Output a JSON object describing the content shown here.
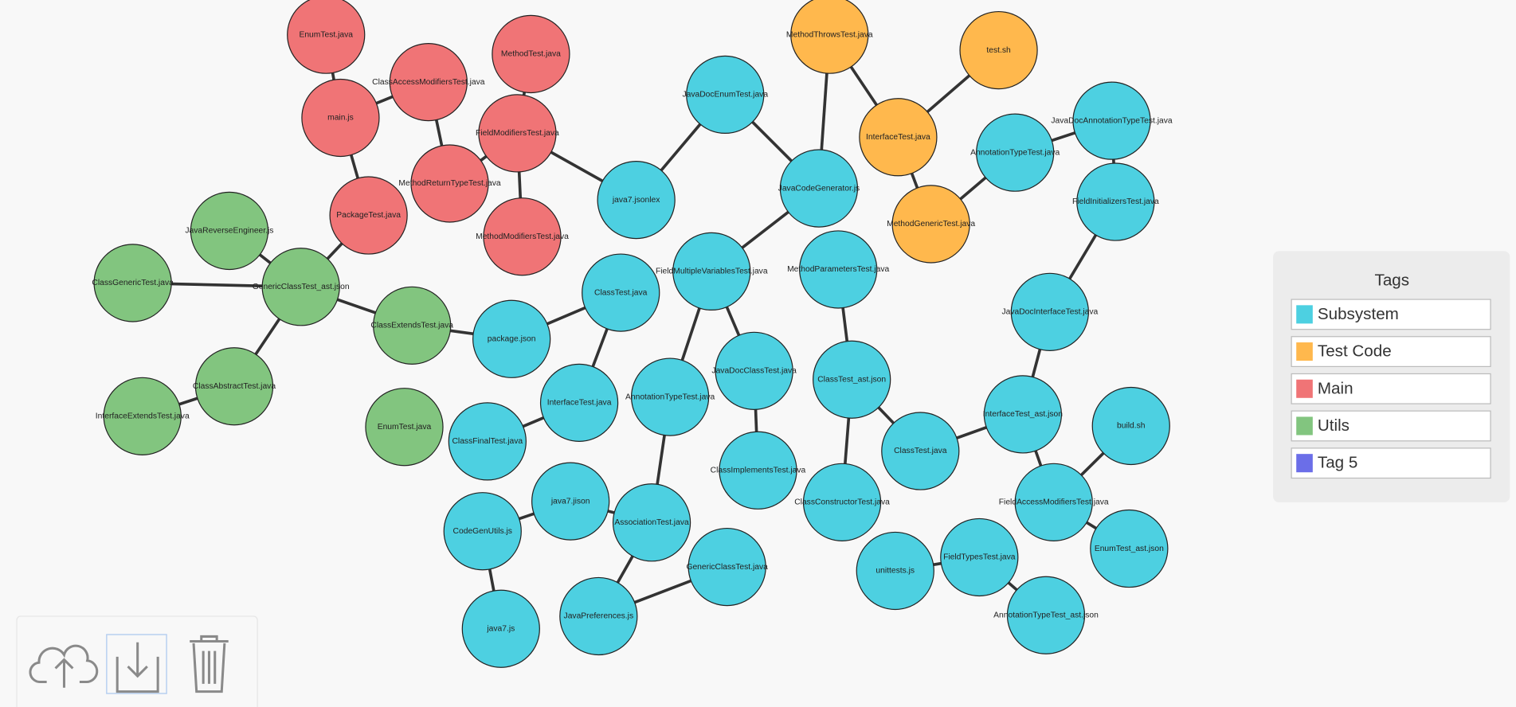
{
  "legend": {
    "title": "Tags",
    "tags": [
      {
        "name": "Subsystem",
        "color": "#4dd0e1"
      },
      {
        "name": "Test Code",
        "color": "#ffb84d"
      },
      {
        "name": "Main",
        "color": "#f07476"
      },
      {
        "name": "Utils",
        "color": "#82c57f"
      },
      {
        "name": "Tag 5",
        "color": "#6b6ee8"
      }
    ]
  },
  "nodes": [
    {
      "label": "EnumTest.java"
    },
    {
      "label": "ClassAccessModifiersTest.java"
    },
    {
      "label": "MethodTest.java"
    },
    {
      "label": "main.js"
    },
    {
      "label": "FieldModifiersTest.java"
    },
    {
      "label": "MethodReturnTypeTest.java"
    },
    {
      "label": "PackageTest.java"
    },
    {
      "label": "MethodModifiersTest.java"
    },
    {
      "label": "JavaReverseEngineer.js"
    },
    {
      "label": "ClassGenericTest.java"
    },
    {
      "label": "GenericClassTest_ast.json"
    },
    {
      "label": "ClassExtendsTest.java"
    },
    {
      "label": "ClassAbstractTest.java"
    },
    {
      "label": "InterfaceExtendsTest.java"
    },
    {
      "label": "EnumTest.java"
    },
    {
      "label": "MethodThrowsTest.java"
    },
    {
      "label": "test.sh"
    },
    {
      "label": "InterfaceTest.java"
    },
    {
      "label": "MethodGenericTest.java"
    },
    {
      "label": "JavaDocEnumTest.java"
    },
    {
      "label": "java7.jsonlex"
    },
    {
      "label": "JavaCodeGenerator.js"
    },
    {
      "label": "AnnotationTypeTest.java"
    },
    {
      "label": "JavaDocAnnotationTypeTest.java"
    },
    {
      "label": "FieldInitializersTest.java"
    },
    {
      "label": "FieldMultipleVariablesTest.java"
    },
    {
      "label": "MethodParametersTest.java"
    },
    {
      "label": "ClassTest.java"
    },
    {
      "label": "package.json"
    },
    {
      "label": "JavaDocInterfaceTest.java"
    },
    {
      "label": "JavaDocClassTest.java"
    },
    {
      "label": "ClassTest_ast.json"
    },
    {
      "label": "InterfaceTest.java"
    },
    {
      "label": "AnnotationTypeTest.java"
    },
    {
      "label": "InterfaceTest_ast.json"
    },
    {
      "label": "build.sh"
    },
    {
      "label": "ClassFinalTest.java"
    },
    {
      "label": "ClassTest.java"
    },
    {
      "label": "ClassImplementsTest.java"
    },
    {
      "label": "java7.jison"
    },
    {
      "label": "CodeGenUtils.js"
    },
    {
      "label": "AssociationTest.java"
    },
    {
      "label": "ClassConstructorTest.java"
    },
    {
      "label": "FieldAccessModifiersTest.java"
    },
    {
      "label": "EnumTest_ast.json"
    },
    {
      "label": "GenericClassTest.java"
    },
    {
      "label": "unittests.js"
    },
    {
      "label": "FieldTypesTest.java"
    },
    {
      "label": "JavaPreferences.js"
    },
    {
      "label": "java7.js"
    },
    {
      "label": "AnnotationTypeTest_ast.json"
    }
  ]
}
